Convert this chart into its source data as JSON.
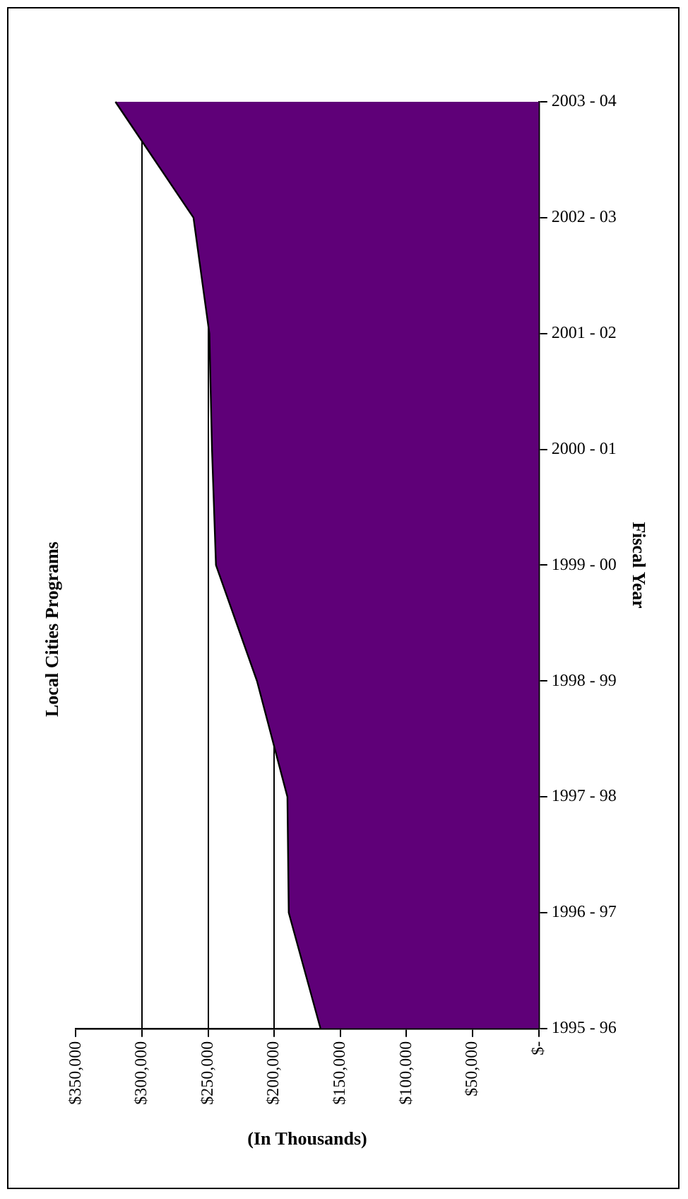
{
  "chart_data": {
    "type": "area",
    "orientation": "horizontal",
    "title": "Local Cities Programs",
    "xlabel": "(In Thousands)",
    "ylabel": "Fiscal Year",
    "categories": [
      "2003 - 04",
      "2002 - 03",
      "2001 - 02",
      "2000 - 01",
      "1999 - 00",
      "1998 - 99",
      "1997 - 98",
      "1996 - 97",
      "1995 - 96"
    ],
    "series": [
      {
        "color": "#5f0078",
        "values": [
          320000,
          261000,
          249000,
          247000,
          244000,
          213000,
          190000,
          189000,
          165000
        ]
      }
    ],
    "xlim": [
      350000,
      0
    ],
    "xticks": [
      {
        "value": 350000,
        "label": "$350,000"
      },
      {
        "value": 300000,
        "label": "$300,000"
      },
      {
        "value": 250000,
        "label": "$250,000"
      },
      {
        "value": 200000,
        "label": "$200,000"
      },
      {
        "value": 150000,
        "label": "$150,000"
      },
      {
        "value": 100000,
        "label": "$100,000"
      },
      {
        "value": 50000,
        "label": "$50,000"
      },
      {
        "value": 0,
        "label": "$-"
      }
    ],
    "grid": "x",
    "legend": false,
    "marker": "none"
  }
}
